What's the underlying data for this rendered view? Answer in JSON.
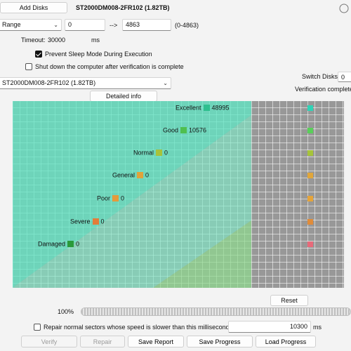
{
  "top": {
    "add_disks_label": "Add Disks",
    "disk_title": "ST2000DM008-2FR102 (1.82TB)",
    "range_mode": "Range",
    "range_start": "0",
    "range_arrow": "-->",
    "range_end": "4863",
    "range_hint": "(0-4863)",
    "timeout_label": "Timeout:",
    "timeout_value": "30000",
    "timeout_unit": "ms",
    "prevent_sleep_label": "Prevent Sleep Mode During Execution",
    "prevent_sleep_checked": true,
    "shutdown_label": "Shut down the computer after verification is complete",
    "shutdown_checked": false
  },
  "disk_select": {
    "value": "ST2000DM008-2FR102 (1.82TB)",
    "switch_label": "Switch Disks:",
    "switch_value": "0",
    "status_text": "Verification completed"
  },
  "detailed_info_label": "Detailed info",
  "legend": [
    {
      "label": "Excellent",
      "value": "48995",
      "color": "#2fbf8f"
    },
    {
      "label": "Good",
      "value": "10576",
      "color": "#4fbf4f"
    },
    {
      "label": "Normal",
      "value": "0",
      "color": "#a8c23a"
    },
    {
      "label": "General",
      "value": "0",
      "color": "#e0a33a"
    },
    {
      "label": "Poor",
      "value": "0",
      "color": "#e59a3a"
    },
    {
      "label": "Severe",
      "value": "0",
      "color": "#e27d3a"
    },
    {
      "label": "Damaged",
      "value": "0",
      "color": "#e25a5a"
    }
  ],
  "status_dots": [
    "#2fd3b6",
    "#59cf59",
    "#a6c43a",
    "#e1a63a",
    "#e5a43a",
    "#e08c3a",
    "#e86a7a"
  ],
  "reset_label": "Reset",
  "progress": {
    "percent_text": "100%",
    "fraction": 1.0
  },
  "repair_option": {
    "label": "Repair normal sectors whose speed is slower than this millisecond:",
    "checked": false,
    "value": "10300",
    "unit": "ms"
  },
  "bottom_buttons": {
    "verify": "Verify",
    "repair": "Repair",
    "save_report": "Save Report",
    "save_progress": "Save Progress",
    "load_progress": "Load Progress"
  }
}
